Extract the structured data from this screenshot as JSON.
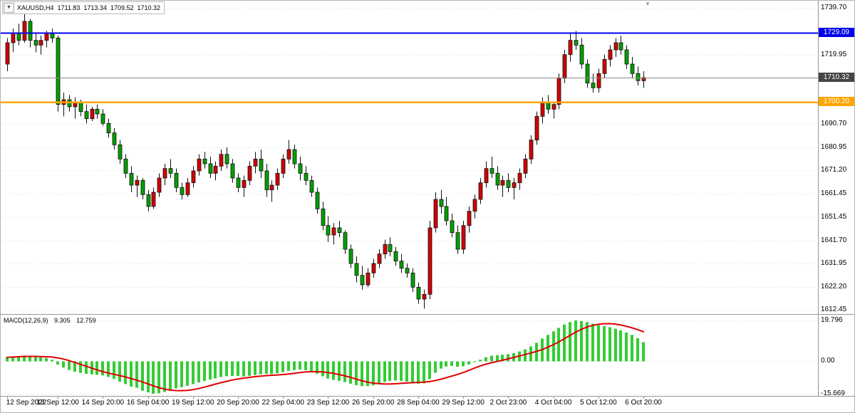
{
  "chart": {
    "symbol_info": {
      "dropdown_icon": "▼",
      "symbol": "XAUUSD,H4",
      "open": "1711.83",
      "high": "1713.34",
      "low": "1709.52",
      "close": "1710.32"
    },
    "shift_marker_icon": "▼",
    "price_axis": {
      "ticks": [
        "1739.70",
        "1719.95",
        "1690.70",
        "1680.95",
        "1671.20",
        "1661.45",
        "1651.45",
        "1641.70",
        "1631.95",
        "1622.20",
        "1612.45"
      ],
      "badges": [
        {
          "id": "resistance",
          "text": "1729.09",
          "value": 1729.09,
          "color": "#0000e8"
        },
        {
          "id": "current",
          "text": "1710.32",
          "value": 1710.32,
          "color": "#454545"
        },
        {
          "id": "support",
          "text": "1700.20",
          "value": 1700.2,
          "color": "#ffa500"
        }
      ]
    },
    "time_axis": {
      "labels": [
        {
          "text": "12 Sep 2022",
          "bar": 0
        },
        {
          "text": "13 Sep 12:00",
          "bar": 9
        },
        {
          "text": "14 Sep 20:00",
          "bar": 17
        },
        {
          "text": "16 Sep 04:00",
          "bar": 25
        },
        {
          "text": "19 Sep 12:00",
          "bar": 33
        },
        {
          "text": "20 Sep 20:00",
          "bar": 41
        },
        {
          "text": "22 Sep 04:00",
          "bar": 49
        },
        {
          "text": "23 Sep 12:00",
          "bar": 57
        },
        {
          "text": "26 Sep 20:00",
          "bar": 65
        },
        {
          "text": "28 Sep 04:00",
          "bar": 73
        },
        {
          "text": "29 Sep 12:00",
          "bar": 81
        },
        {
          "text": "2 Oct 23:00",
          "bar": 89
        },
        {
          "text": "4 Oct 04:00",
          "bar": 97
        },
        {
          "text": "5 Oct 12:00",
          "bar": 105
        },
        {
          "text": "6 Oct 20:00",
          "bar": 113
        }
      ]
    },
    "lines": [
      {
        "id": "resistance-line",
        "value": 1729.09,
        "color": "#0000e8",
        "width": 2,
        "interactable": true
      },
      {
        "id": "support-line",
        "value": 1700.2,
        "color": "#ffa500",
        "width": 2.5,
        "interactable": true
      },
      {
        "id": "current-price-line",
        "value": 1710.32,
        "color": "#8a8a8a",
        "width": 1,
        "interactable": false
      }
    ]
  },
  "macd_panel": {
    "caption": "MACD(12,26,9)",
    "main_value": "9.305",
    "signal_value": "12.759",
    "axis_ticks": [
      "19.796",
      "0.00",
      "-15.669"
    ],
    "colors": {
      "histogram": "#32cd32",
      "signal": "#e00000"
    }
  },
  "chart_data": [
    {
      "type": "candlestick",
      "title": "XAUUSD,H4",
      "y_range": [
        1610.7,
        1742.7
      ],
      "up_color": "#d20000",
      "down_color": "#00a000",
      "ohlc": [
        [
          1716,
          1727,
          1713,
          1725
        ],
        [
          1725,
          1731,
          1721,
          1729
        ],
        [
          1729,
          1733,
          1724,
          1726
        ],
        [
          1726,
          1737,
          1725,
          1734
        ],
        [
          1734,
          1735,
          1723,
          1726
        ],
        [
          1726,
          1729,
          1721,
          1724
        ],
        [
          1724,
          1728,
          1720,
          1726
        ],
        [
          1726,
          1730,
          1723,
          1729
        ],
        [
          1729,
          1731,
          1725,
          1727
        ],
        [
          1727,
          1728,
          1696,
          1699
        ],
        [
          1699,
          1704,
          1694,
          1701
        ],
        [
          1701,
          1703,
          1696,
          1698
        ],
        [
          1698,
          1702,
          1693,
          1700
        ],
        [
          1700,
          1701,
          1694,
          1696
        ],
        [
          1696,
          1699,
          1691,
          1693
        ],
        [
          1693,
          1698,
          1692,
          1697
        ],
        [
          1697,
          1699,
          1693,
          1695
        ],
        [
          1695,
          1697,
          1690,
          1691
        ],
        [
          1691,
          1693,
          1685,
          1687
        ],
        [
          1687,
          1689,
          1680,
          1682
        ],
        [
          1682,
          1684,
          1674,
          1676
        ],
        [
          1676,
          1678,
          1668,
          1670
        ],
        [
          1670,
          1673,
          1662,
          1665
        ],
        [
          1665,
          1669,
          1660,
          1667
        ],
        [
          1667,
          1668,
          1659,
          1661
        ],
        [
          1661,
          1663,
          1654,
          1656
        ],
        [
          1656,
          1664,
          1655,
          1662
        ],
        [
          1662,
          1670,
          1660,
          1668
        ],
        [
          1668,
          1674,
          1665,
          1672
        ],
        [
          1672,
          1676,
          1668,
          1670
        ],
        [
          1670,
          1672,
          1662,
          1664
        ],
        [
          1664,
          1666,
          1659,
          1661
        ],
        [
          1661,
          1668,
          1660,
          1666
        ],
        [
          1666,
          1673,
          1664,
          1671
        ],
        [
          1671,
          1678,
          1669,
          1676
        ],
        [
          1676,
          1679,
          1672,
          1674
        ],
        [
          1674,
          1677,
          1668,
          1670
        ],
        [
          1670,
          1675,
          1667,
          1673
        ],
        [
          1673,
          1680,
          1671,
          1678
        ],
        [
          1678,
          1681,
          1672,
          1674
        ],
        [
          1674,
          1676,
          1666,
          1668
        ],
        [
          1668,
          1670,
          1662,
          1664
        ],
        [
          1664,
          1669,
          1660,
          1667
        ],
        [
          1667,
          1675,
          1665,
          1673
        ],
        [
          1673,
          1679,
          1670,
          1676
        ],
        [
          1676,
          1680,
          1668,
          1671
        ],
        [
          1671,
          1674,
          1660,
          1663
        ],
        [
          1663,
          1667,
          1658,
          1665
        ],
        [
          1665,
          1672,
          1663,
          1670
        ],
        [
          1670,
          1678,
          1668,
          1676
        ],
        [
          1676,
          1684,
          1674,
          1680
        ],
        [
          1680,
          1682,
          1672,
          1674
        ],
        [
          1674,
          1677,
          1667,
          1670
        ],
        [
          1670,
          1673,
          1665,
          1667
        ],
        [
          1667,
          1669,
          1660,
          1662
        ],
        [
          1662,
          1664,
          1653,
          1655
        ],
        [
          1655,
          1658,
          1646,
          1648
        ],
        [
          1648,
          1652,
          1641,
          1644
        ],
        [
          1644,
          1649,
          1640,
          1647
        ],
        [
          1647,
          1650,
          1643,
          1645
        ],
        [
          1645,
          1646,
          1636,
          1638
        ],
        [
          1638,
          1640,
          1630,
          1632
        ],
        [
          1632,
          1635,
          1624,
          1627
        ],
        [
          1627,
          1631,
          1621,
          1623
        ],
        [
          1623,
          1630,
          1622,
          1628
        ],
        [
          1628,
          1634,
          1626,
          1632
        ],
        [
          1632,
          1638,
          1630,
          1636
        ],
        [
          1636,
          1642,
          1634,
          1640
        ],
        [
          1640,
          1643,
          1635,
          1637
        ],
        [
          1637,
          1639,
          1631,
          1633
        ],
        [
          1633,
          1636,
          1628,
          1630
        ],
        [
          1630,
          1632,
          1626,
          1628
        ],
        [
          1628,
          1630,
          1620,
          1622
        ],
        [
          1622,
          1624,
          1615,
          1617
        ],
        [
          1617,
          1621,
          1613,
          1619
        ],
        [
          1619,
          1650,
          1617,
          1647
        ],
        [
          1647,
          1662,
          1645,
          1659
        ],
        [
          1659,
          1663,
          1653,
          1656
        ],
        [
          1656,
          1660,
          1648,
          1650
        ],
        [
          1650,
          1653,
          1643,
          1645
        ],
        [
          1645,
          1648,
          1636,
          1638
        ],
        [
          1638,
          1650,
          1636,
          1648
        ],
        [
          1648,
          1656,
          1645,
          1654
        ],
        [
          1654,
          1661,
          1651,
          1659
        ],
        [
          1659,
          1668,
          1657,
          1666
        ],
        [
          1666,
          1675,
          1664,
          1672
        ],
        [
          1672,
          1677,
          1668,
          1670
        ],
        [
          1670,
          1673,
          1663,
          1665
        ],
        [
          1665,
          1669,
          1660,
          1667
        ],
        [
          1667,
          1670,
          1662,
          1664
        ],
        [
          1664,
          1668,
          1659,
          1666
        ],
        [
          1666,
          1672,
          1663,
          1670
        ],
        [
          1670,
          1678,
          1668,
          1676
        ],
        [
          1676,
          1686,
          1674,
          1684
        ],
        [
          1684,
          1696,
          1682,
          1694
        ],
        [
          1694,
          1702,
          1691,
          1700
        ],
        [
          1700,
          1703,
          1695,
          1697
        ],
        [
          1697,
          1700,
          1693,
          1699
        ],
        [
          1699,
          1712,
          1697,
          1710
        ],
        [
          1710,
          1722,
          1708,
          1720
        ],
        [
          1720,
          1729,
          1717,
          1726
        ],
        [
          1726,
          1730,
          1722,
          1724
        ],
        [
          1724,
          1727,
          1714,
          1716
        ],
        [
          1716,
          1718,
          1706,
          1708
        ],
        [
          1708,
          1712,
          1704,
          1706
        ],
        [
          1706,
          1714,
          1704,
          1712
        ],
        [
          1712,
          1720,
          1710,
          1718
        ],
        [
          1718,
          1724,
          1715,
          1722
        ],
        [
          1722,
          1727,
          1719,
          1725
        ],
        [
          1725,
          1728,
          1720,
          1722
        ],
        [
          1722,
          1724,
          1714,
          1716
        ],
        [
          1716,
          1719,
          1710,
          1712
        ],
        [
          1712,
          1715,
          1707,
          1709
        ],
        [
          1709,
          1713,
          1706,
          1710.32
        ]
      ]
    },
    {
      "type": "bar",
      "title": "MACD(12,26,9)",
      "y_range": [
        -16.7,
        22.2
      ],
      "signal_period": 9,
      "values": [
        2.0,
        2.2,
        2.5,
        2.8,
        2.6,
        2.3,
        2.0,
        1.6,
        0.8,
        -1.5,
        -3.0,
        -4.2,
        -5.0,
        -5.6,
        -6.0,
        -6.3,
        -6.5,
        -6.8,
        -7.5,
        -8.5,
        -9.8,
        -11.0,
        -12.2,
        -12.8,
        -14.2,
        -15.0,
        -15.669,
        -15.4,
        -14.8,
        -14.0,
        -13.0,
        -12.5,
        -11.8,
        -11.0,
        -10.2,
        -9.5,
        -8.8,
        -8.2,
        -7.6,
        -7.2,
        -7.0,
        -7.1,
        -7.3,
        -7.0,
        -6.6,
        -6.2,
        -6.0,
        -6.1,
        -5.8,
        -5.2,
        -4.6,
        -4.2,
        -4.0,
        -4.2,
        -5.0,
        -6.0,
        -7.2,
        -8.3,
        -9.0,
        -9.4,
        -10.0,
        -10.8,
        -11.5,
        -12.0,
        -12.0,
        -11.6,
        -10.8,
        -10.0,
        -9.4,
        -9.2,
        -9.4,
        -9.8,
        -10.4,
        -10.8,
        -10.6,
        -8.5,
        -5.5,
        -3.5,
        -2.5,
        -2.2,
        -2.6,
        -2.4,
        -1.5,
        -0.4,
        0.8,
        2.0,
        2.8,
        3.0,
        3.2,
        3.5,
        4.0,
        4.8,
        5.8,
        7.2,
        9.0,
        11.0,
        12.8,
        14.5,
        16.2,
        17.8,
        19.0,
        19.796,
        19.5,
        19.0,
        18.2,
        17.5,
        17.0,
        16.5,
        15.8,
        15.0,
        14.0,
        12.8,
        11.2,
        9.305
      ]
    }
  ]
}
